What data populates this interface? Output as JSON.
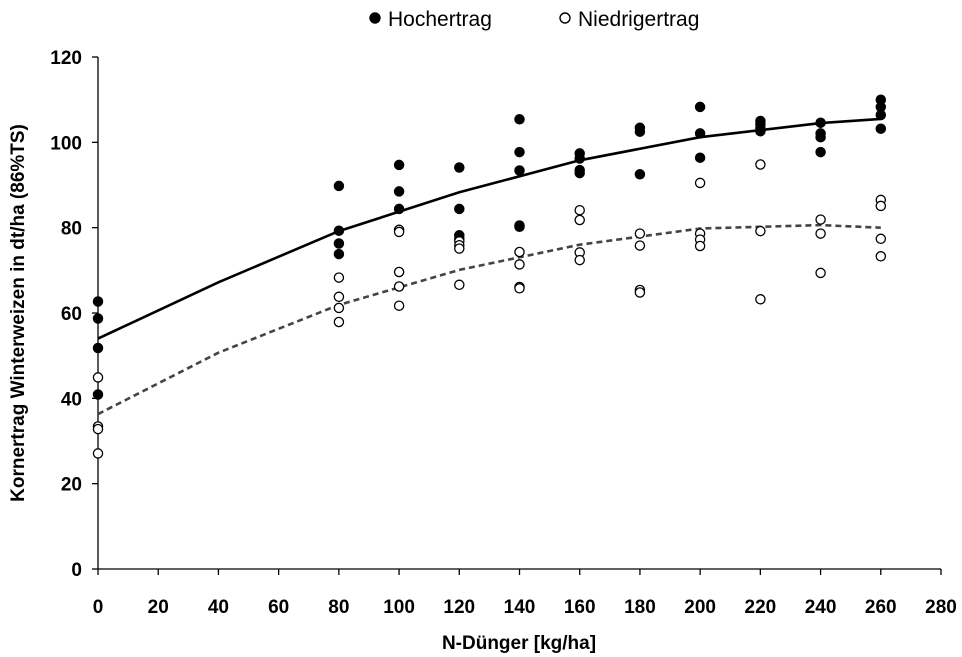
{
  "chart_data": {
    "type": "scatter",
    "xlabel": "N-Dünger [kg/ha]",
    "ylabel": "Kornertrag Winterweizen in dt/ha (86%TS)",
    "xlim": [
      0,
      280
    ],
    "ylim": [
      0,
      120
    ],
    "x_ticks": [
      0,
      20,
      40,
      60,
      80,
      100,
      120,
      140,
      160,
      180,
      200,
      220,
      240,
      260,
      280
    ],
    "y_ticks": [
      0,
      20,
      40,
      60,
      80,
      100,
      120
    ],
    "grid": false,
    "legend_position": "top-center",
    "series": [
      {
        "name": "Hochertrag",
        "marker": "filled-circle",
        "color": "#000000",
        "points": [
          [
            0,
            62.7
          ],
          [
            0,
            58.7
          ],
          [
            0,
            51.8
          ],
          [
            0,
            40.9
          ],
          [
            80,
            89.8
          ],
          [
            80,
            79.3
          ],
          [
            80,
            76.3
          ],
          [
            80,
            73.8
          ],
          [
            100,
            94.7
          ],
          [
            100,
            88.5
          ],
          [
            100,
            84.4
          ],
          [
            120,
            94.1
          ],
          [
            120,
            84.4
          ],
          [
            120,
            78.2
          ],
          [
            120,
            77.4
          ],
          [
            140,
            105.4
          ],
          [
            140,
            97.7
          ],
          [
            140,
            93.4
          ],
          [
            140,
            80.5
          ],
          [
            140,
            80.2
          ],
          [
            160,
            97.4
          ],
          [
            160,
            96.2
          ],
          [
            160,
            93.5
          ],
          [
            160,
            92.8
          ],
          [
            180,
            103.4
          ],
          [
            180,
            102.5
          ],
          [
            180,
            92.5
          ],
          [
            200,
            108.3
          ],
          [
            200,
            102.1
          ],
          [
            200,
            96.4
          ],
          [
            220,
            105.0
          ],
          [
            220,
            104.2
          ],
          [
            220,
            103.3
          ],
          [
            220,
            102.6
          ],
          [
            240,
            104.6
          ],
          [
            240,
            102.1
          ],
          [
            240,
            101.2
          ],
          [
            240,
            97.7
          ],
          [
            260,
            110.0
          ],
          [
            260,
            108.3
          ],
          [
            260,
            106.4
          ],
          [
            260,
            103.2
          ]
        ],
        "trendline": {
          "style": "solid",
          "x": [
            0,
            40,
            80,
            120,
            160,
            200,
            240,
            260
          ],
          "y": [
            54.0,
            67.2,
            79.2,
            88.3,
            95.8,
            101.2,
            104.5,
            105.5
          ]
        }
      },
      {
        "name": "Niedrigertrag",
        "marker": "open-circle",
        "color": "#000000",
        "points": [
          [
            0,
            44.9
          ],
          [
            0,
            33.4
          ],
          [
            0,
            32.8
          ],
          [
            0,
            27.1
          ],
          [
            80,
            68.3
          ],
          [
            80,
            63.8
          ],
          [
            80,
            61.2
          ],
          [
            80,
            57.9
          ],
          [
            100,
            79.5
          ],
          [
            100,
            79.0
          ],
          [
            100,
            69.6
          ],
          [
            100,
            66.2
          ],
          [
            100,
            61.7
          ],
          [
            120,
            76.8
          ],
          [
            120,
            75.9
          ],
          [
            120,
            75.1
          ],
          [
            120,
            66.6
          ],
          [
            140,
            74.3
          ],
          [
            140,
            71.4
          ],
          [
            140,
            66.1
          ],
          [
            140,
            65.8
          ],
          [
            160,
            84.1
          ],
          [
            160,
            81.8
          ],
          [
            160,
            74.2
          ],
          [
            160,
            72.4
          ],
          [
            180,
            78.6
          ],
          [
            180,
            75.8
          ],
          [
            180,
            65.4
          ],
          [
            180,
            64.8
          ],
          [
            200,
            90.5
          ],
          [
            200,
            78.6
          ],
          [
            200,
            77.2
          ],
          [
            200,
            75.7
          ],
          [
            220,
            94.8
          ],
          [
            220,
            79.2
          ],
          [
            220,
            63.2
          ],
          [
            240,
            81.9
          ],
          [
            240,
            78.6
          ],
          [
            240,
            69.4
          ],
          [
            260,
            86.5
          ],
          [
            260,
            85.1
          ],
          [
            260,
            77.4
          ],
          [
            260,
            73.3
          ]
        ],
        "trendline": {
          "style": "dashed",
          "x": [
            0,
            40,
            80,
            120,
            160,
            200,
            240,
            260
          ],
          "y": [
            36.3,
            50.7,
            61.9,
            70.1,
            76.0,
            79.8,
            80.6,
            80.0
          ]
        }
      }
    ]
  }
}
